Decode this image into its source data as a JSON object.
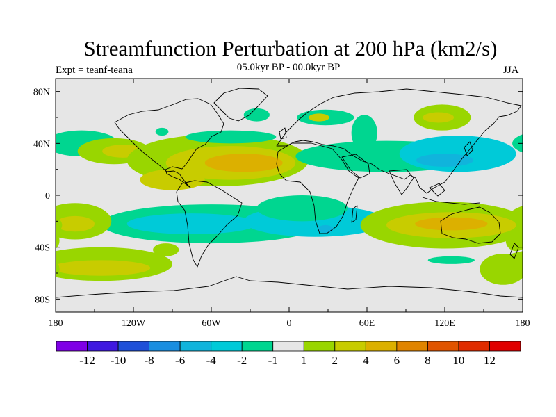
{
  "chart_data": {
    "type": "heatmap",
    "title": "Streamfunction Perturbation at 200 hPa (km2/s)",
    "subtitle": "05.0kyr BP - 00.0kyr BP",
    "left_label": "Expt = teanf-teana",
    "right_label": "JJA",
    "x_axis": {
      "ticks": [
        "180",
        "120W",
        "60W",
        "0",
        "60E",
        "120E",
        "180"
      ],
      "values": [
        -180,
        -120,
        -60,
        0,
        60,
        120,
        180
      ],
      "range": [
        -180,
        180
      ]
    },
    "y_axis": {
      "ticks": [
        "80N",
        "40N",
        "0",
        "40S",
        "80S"
      ],
      "values": [
        80,
        40,
        0,
        -40,
        -80
      ],
      "range": [
        -90,
        90
      ]
    },
    "colorbar": {
      "labels": [
        "-12",
        "-10",
        "-8",
        "-6",
        "-4",
        "-2",
        "-1",
        "1",
        "2",
        "4",
        "6",
        "8",
        "10",
        "12"
      ],
      "levels": [
        -12,
        -10,
        -8,
        -6,
        -4,
        -2,
        -1,
        1,
        2,
        4,
        6,
        8,
        10,
        12
      ],
      "colors": [
        "#7f00e6",
        "#3f18e0",
        "#1f50d8",
        "#1a8ee0",
        "#10b4dc",
        "#00cad8",
        "#00d690",
        "#e6e6e6",
        "#99d600",
        "#c8cc00",
        "#dcb000",
        "#e08400",
        "#e05400",
        "#e02c00",
        "#e00000"
      ]
    },
    "anomaly_regions": [
      {
        "lon": -160,
        "lat": 40,
        "rx": 28,
        "ry": 10,
        "value": -1.5
      },
      {
        "lon": -135,
        "lat": 34,
        "rx": 28,
        "ry": 10,
        "value": 1.5
      },
      {
        "lon": -128,
        "lat": 34,
        "rx": 16,
        "ry": 5,
        "value": 3
      },
      {
        "lon": -55,
        "lat": 27,
        "rx": 70,
        "ry": 20,
        "value": 1.5
      },
      {
        "lon": -45,
        "lat": 25,
        "rx": 50,
        "ry": 13,
        "value": 3
      },
      {
        "lon": -35,
        "lat": 25,
        "rx": 30,
        "ry": 7,
        "value": 5
      },
      {
        "lon": -90,
        "lat": 12,
        "rx": 25,
        "ry": 8,
        "value": 3
      },
      {
        "lon": -45,
        "lat": 45,
        "rx": 35,
        "ry": 5,
        "value": -1.5
      },
      {
        "lon": 28,
        "lat": 60,
        "rx": 22,
        "ry": 6,
        "value": -1.5
      },
      {
        "lon": 23,
        "lat": 60,
        "rx": 8,
        "ry": 3,
        "value": 3
      },
      {
        "lon": -25,
        "lat": 62,
        "rx": 10,
        "ry": 5,
        "value": -1.5
      },
      {
        "lon": -98,
        "lat": 49,
        "rx": 5,
        "ry": 3,
        "value": -1.5
      },
      {
        "lon": 75,
        "lat": 30,
        "rx": 70,
        "ry": 12,
        "value": -1.5
      },
      {
        "lon": 58,
        "lat": 48,
        "rx": 10,
        "ry": 14,
        "value": -1.5
      },
      {
        "lon": 130,
        "lat": 32,
        "rx": 45,
        "ry": 14,
        "value": -3
      },
      {
        "lon": 120,
        "lat": 27,
        "rx": 22,
        "ry": 5,
        "value": -5
      },
      {
        "lon": 118,
        "lat": 60,
        "rx": 22,
        "ry": 10,
        "value": 1.5
      },
      {
        "lon": 115,
        "lat": 60,
        "rx": 12,
        "ry": 4,
        "value": 3
      },
      {
        "lon": -60,
        "lat": -22,
        "rx": 85,
        "ry": 15,
        "value": -1.5
      },
      {
        "lon": -75,
        "lat": -22,
        "rx": 50,
        "ry": 8,
        "value": -3
      },
      {
        "lon": 20,
        "lat": -20,
        "rx": 55,
        "ry": 12,
        "value": -3
      },
      {
        "lon": 28,
        "lat": -26,
        "rx": 6,
        "ry": 3,
        "value": -5
      },
      {
        "lon": 10,
        "lat": -10,
        "rx": 35,
        "ry": 10,
        "value": -1.5
      },
      {
        "lon": -165,
        "lat": -20,
        "rx": 28,
        "ry": 14,
        "value": 1.5
      },
      {
        "lon": -165,
        "lat": -22,
        "rx": 15,
        "ry": 6,
        "value": 3
      },
      {
        "lon": 120,
        "lat": -23,
        "rx": 65,
        "ry": 18,
        "value": 1.5
      },
      {
        "lon": 125,
        "lat": -23,
        "rx": 50,
        "ry": 10,
        "value": 3
      },
      {
        "lon": 125,
        "lat": -22,
        "rx": 28,
        "ry": 5,
        "value": 5
      },
      {
        "lon": -145,
        "lat": -53,
        "rx": 55,
        "ry": 13,
        "value": 1.5
      },
      {
        "lon": -145,
        "lat": -56,
        "rx": 38,
        "ry": 6,
        "value": 3
      },
      {
        "lon": -95,
        "lat": -42,
        "rx": 10,
        "ry": 5,
        "value": 1.5
      },
      {
        "lon": 165,
        "lat": -57,
        "rx": 18,
        "ry": 12,
        "value": 1.5
      },
      {
        "lon": 125,
        "lat": -50,
        "rx": 18,
        "ry": 3,
        "value": -1.5
      },
      {
        "lon": 175,
        "lat": -35,
        "rx": 8,
        "ry": 8,
        "value": 1.5
      }
    ]
  }
}
